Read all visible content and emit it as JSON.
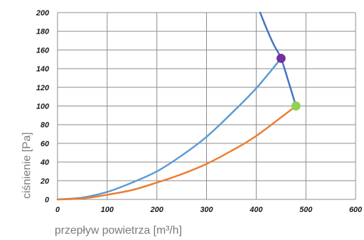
{
  "chart_data": {
    "type": "line",
    "xlabel": "przepływ powietrza [m³/h]",
    "ylabel": "ciśnienie [Pa]",
    "xlim": [
      0,
      600
    ],
    "ylim": [
      0,
      200
    ],
    "x_ticks": [
      "0",
      "100",
      "200",
      "300",
      "400",
      "500",
      "600"
    ],
    "y_ticks": [
      "0",
      "20",
      "40",
      "60",
      "80",
      "100",
      "120",
      "140",
      "160",
      "180",
      "200"
    ],
    "grid": true,
    "series": [
      {
        "color": "#5b9bd5",
        "x": [
          0,
          50,
          100,
          150,
          200,
          250,
          300,
          350,
          400,
          450
        ],
        "y": [
          0,
          2,
          8,
          18,
          30,
          47,
          67,
          92,
          119,
          151
        ]
      },
      {
        "color": "#ed7d31",
        "x": [
          0,
          50,
          100,
          150,
          200,
          250,
          300,
          350,
          400,
          480
        ],
        "y": [
          0,
          1,
          5,
          10,
          18,
          27,
          38,
          52,
          68,
          100
        ]
      },
      {
        "color": "#4472c4",
        "x": [
          408,
          420,
          435,
          450,
          465,
          480
        ],
        "y": [
          200,
          184,
          166,
          151,
          126,
          100
        ]
      }
    ],
    "points": [
      {
        "x": 450,
        "y": 151,
        "color": "#7030a0"
      },
      {
        "x": 480,
        "y": 100,
        "color": "#92d050"
      }
    ]
  }
}
